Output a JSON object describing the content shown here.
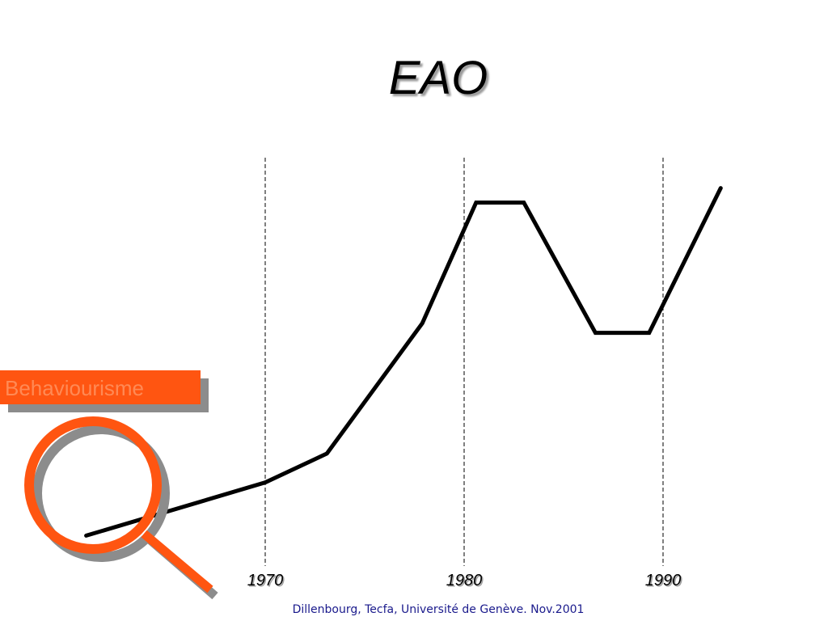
{
  "slide": {
    "title": "EAO",
    "footer": "Dillenbourg, Tecfa, Université de Genève. Nov.2001",
    "badge_label": "Behaviourisme"
  },
  "colors": {
    "accent": "#ff5511",
    "shadow": "#8c8c8c",
    "line": "#000000",
    "footer_text": "#1a1a8c"
  },
  "icons": {
    "magnifier": "magnifier-icon"
  },
  "chart_data": {
    "type": "line",
    "title": "",
    "xlabel": "",
    "ylabel": "",
    "xlim": [
      1960,
      1995
    ],
    "ylim": [
      0,
      100
    ],
    "xticks": [
      1970,
      1980,
      1990
    ],
    "tick_labels": [
      "1970",
      "1980",
      "1990"
    ],
    "vertical_gridlines": true,
    "grid_style": "dashed",
    "series": [
      {
        "x": [
          1961.0,
          1970.0,
          1973.1,
          1977.9,
          1980.6,
          1983.0,
          1986.6,
          1989.3,
          1992.9
        ],
        "y": [
          13,
          24,
          30,
          57,
          82,
          82,
          55,
          55,
          85
        ]
      }
    ]
  }
}
